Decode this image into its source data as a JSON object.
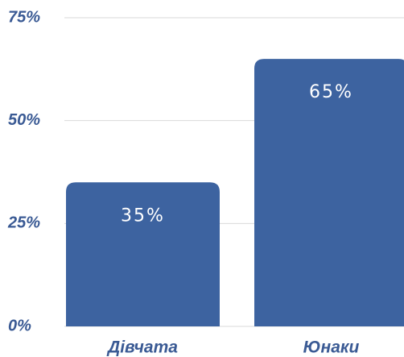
{
  "chart_data": {
    "type": "bar",
    "categories": [
      "Дівчата",
      "Юнаки"
    ],
    "values": [
      35,
      65
    ],
    "value_labels": [
      "35%",
      "65%"
    ],
    "color": "#3d63a0",
    "ylim": [
      0,
      75
    ],
    "yticks": [
      {
        "value": 0,
        "label": "0%"
      },
      {
        "value": 25,
        "label": "25%"
      },
      {
        "value": 50,
        "label": "50%"
      },
      {
        "value": 75,
        "label": "75%"
      }
    ],
    "grid": true
  }
}
